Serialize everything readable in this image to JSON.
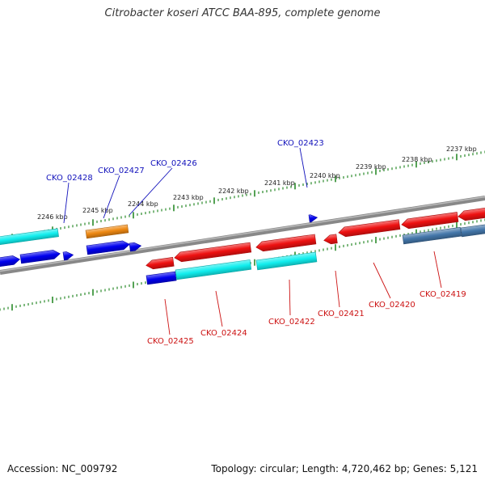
{
  "title": "Citrobacter koseri ATCC BAA-895, complete genome",
  "footer": {
    "accession": "Accession: NC_009792",
    "stats": "Topology: circular; Length: 4,720,462 bp; Genes: 5,121"
  },
  "colors": {
    "forward_label": "#1111bb",
    "reverse_label": "#cc1111",
    "tick": "#2a8a2a",
    "backbone": "#777777",
    "red": "#ee1111",
    "blue": "#0000ee",
    "cyan": "#11eeee",
    "orange": "#ee8811",
    "steel": "#4477aa"
  },
  "ticks": [
    "2237 kbp",
    "2238 kbp",
    "2239 kbp",
    "2240 kbp",
    "2241 kbp",
    "2242 kbp",
    "2243 kbp",
    "2244 kbp",
    "2245 kbp",
    "2246 kbp"
  ],
  "forward_labels": [
    "CKO_02428",
    "CKO_02427",
    "CKO_02426",
    "CKO_02423"
  ],
  "reverse_labels": [
    "CKO_02425",
    "CKO_02424",
    "CKO_02422",
    "CKO_02421",
    "CKO_02420",
    "CKO_02419"
  ]
}
